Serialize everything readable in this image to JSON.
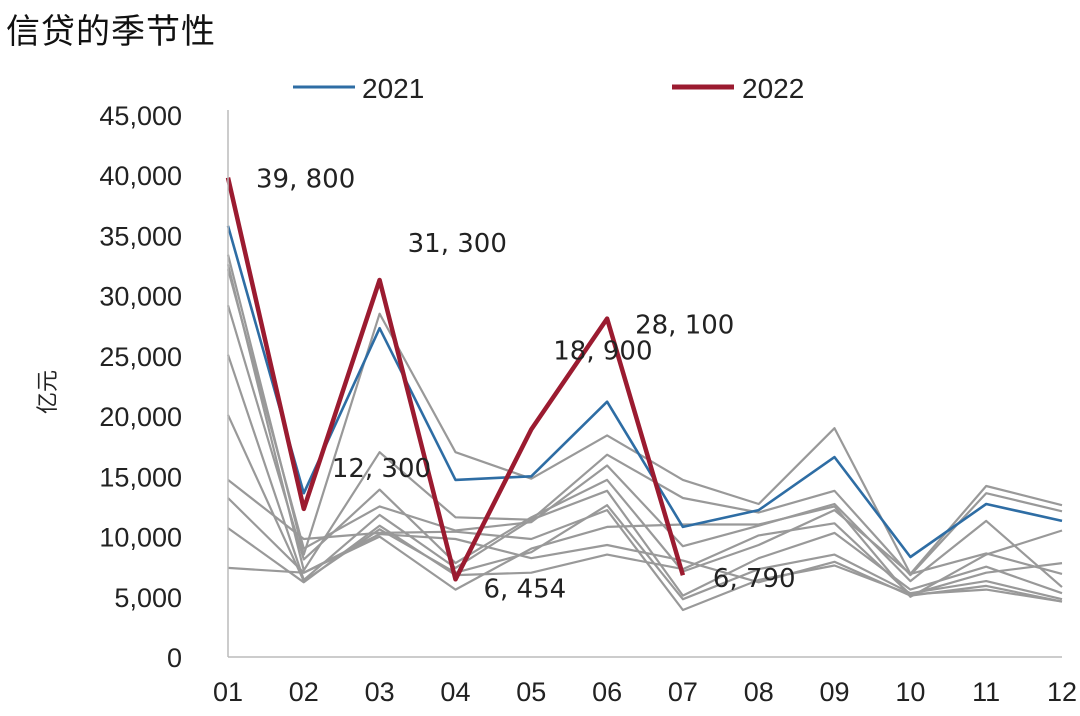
{
  "title": "信贷的季节性",
  "chart_data": {
    "type": "line",
    "title": "信贷的季节性",
    "xlabel": "",
    "ylabel": "亿元",
    "categories": [
      "01",
      "02",
      "03",
      "04",
      "05",
      "06",
      "07",
      "08",
      "09",
      "10",
      "11",
      "12"
    ],
    "ylim": [
      0,
      45000
    ],
    "yticks": [
      0,
      5000,
      10000,
      15000,
      20000,
      25000,
      30000,
      35000,
      40000,
      45000
    ],
    "ytick_labels": [
      "0",
      "5,000",
      "10,000",
      "15,000",
      "20,000",
      "25,000",
      "30,000",
      "35,000",
      "40,000",
      "45,000"
    ],
    "grid": false,
    "legend": "top",
    "series": [
      {
        "name": "2021",
        "color": "#2e6da4",
        "values": [
          35800,
          13600,
          27300,
          14700,
          15000,
          21200,
          10800,
          12200,
          16600,
          8300,
          12700,
          11300
        ]
      },
      {
        "name": "2022",
        "color": "#9b1b30",
        "values": [
          39800,
          12300,
          31300,
          6454,
          18900,
          28100,
          6790,
          null,
          null,
          null,
          null,
          null
        ]
      },
      {
        "color": "#999999",
        "values": [
          33400,
          8500,
          28500,
          17000,
          14800,
          18400,
          14700,
          12700,
          19000,
          6900,
          14200,
          12600
        ]
      },
      {
        "color": "#999999",
        "values": [
          32600,
          7200,
          17000,
          11600,
          11400,
          16800,
          13200,
          12000,
          13800,
          6800,
          13600,
          12100
        ]
      },
      {
        "color": "#999999",
        "values": [
          32200,
          9000,
          12500,
          10500,
          11200,
          15900,
          9200,
          10900,
          12700,
          6300,
          11300,
          5800
        ]
      },
      {
        "color": "#999999",
        "values": [
          29200,
          8100,
          13900,
          7800,
          11600,
          14700,
          7100,
          9300,
          12200,
          6900,
          8600,
          6900
        ]
      },
      {
        "color": "#999999",
        "values": [
          25100,
          6400,
          11800,
          7400,
          11400,
          13800,
          5100,
          8200,
          10300,
          5600,
          7500,
          5300
        ]
      },
      {
        "color": "#999999",
        "values": [
          20100,
          6300,
          10600,
          7000,
          8700,
          12600,
          4800,
          7300,
          8500,
          5300,
          6300,
          4800
        ]
      },
      {
        "color": "#999999",
        "values": [
          14700,
          9800,
          10300,
          10400,
          9800,
          12200,
          3900,
          6400,
          7600,
          5200,
          5600,
          4600
        ]
      },
      {
        "color": "#999999",
        "values": [
          13200,
          7000,
          10000,
          5600,
          9000,
          10800,
          11000,
          11000,
          12500,
          5000,
          8500,
          10500
        ]
      },
      {
        "color": "#999999",
        "values": [
          10700,
          6200,
          10900,
          6800,
          7000,
          8500,
          7300,
          10100,
          11100,
          5200,
          7000,
          7800
        ]
      },
      {
        "color": "#999999",
        "values": [
          7400,
          7000,
          10200,
          9800,
          8200,
          9300,
          8000,
          6200,
          7900,
          5100,
          5900,
          4600
        ]
      }
    ],
    "annotations": [
      {
        "text": "39, 800",
        "x": "01",
        "y": 39800
      },
      {
        "text": "12, 300",
        "x": "02",
        "y": 12300
      },
      {
        "text": "31, 300",
        "x": "03",
        "y": 31300
      },
      {
        "text": "6, 454",
        "x": "04",
        "y": 6454
      },
      {
        "text": "18, 900",
        "x": "05",
        "y": 18900
      },
      {
        "text": "28, 100",
        "x": "06",
        "y": 28100
      },
      {
        "text": "6, 790",
        "x": "07",
        "y": 6790
      }
    ]
  }
}
